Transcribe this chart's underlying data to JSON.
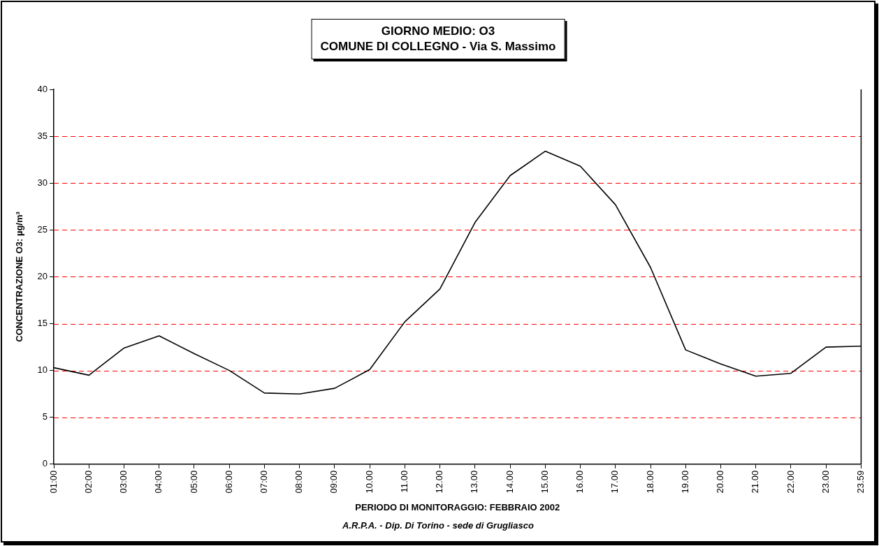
{
  "chart_data": {
    "type": "line",
    "title": "GIORNO MEDIO: O3\nCOMUNE DI COLLEGNO - Via S. Massimo",
    "xlabel": "PERIODO DI MONITORAGGIO: FEBBRAIO 2002",
    "ylabel": "CONCENTRAZIONE O3: µg/m³",
    "annotations": [
      "A.R.P.A. - Dip. Di Torino - sede di Grugliasco"
    ],
    "categories": [
      "01:00",
      "02:00",
      "03:00",
      "04:00",
      "05:00",
      "06:00",
      "07:00",
      "08:00",
      "09:00",
      "10.00",
      "11.00",
      "12.00",
      "13.00",
      "14.00",
      "15.00",
      "16.00",
      "17.00",
      "18.00",
      "19.00",
      "20.00",
      "21.00",
      "22.00",
      "23.00",
      "23.59"
    ],
    "series": [
      {
        "color": "#000000",
        "values": [
          10.3,
          9.5,
          12.4,
          13.7,
          11.8,
          10.0,
          7.6,
          7.5,
          8.1,
          10.1,
          15.2,
          18.7,
          25.8,
          30.8,
          33.4,
          31.8,
          27.7,
          21.0,
          12.2,
          10.7,
          9.4,
          9.7,
          12.5,
          12.6
        ]
      }
    ],
    "ylim": [
      0,
      40
    ],
    "yticks": [
      0,
      5,
      10,
      15,
      20,
      25,
      30,
      35,
      40
    ],
    "grid": "y",
    "legend": false
  }
}
